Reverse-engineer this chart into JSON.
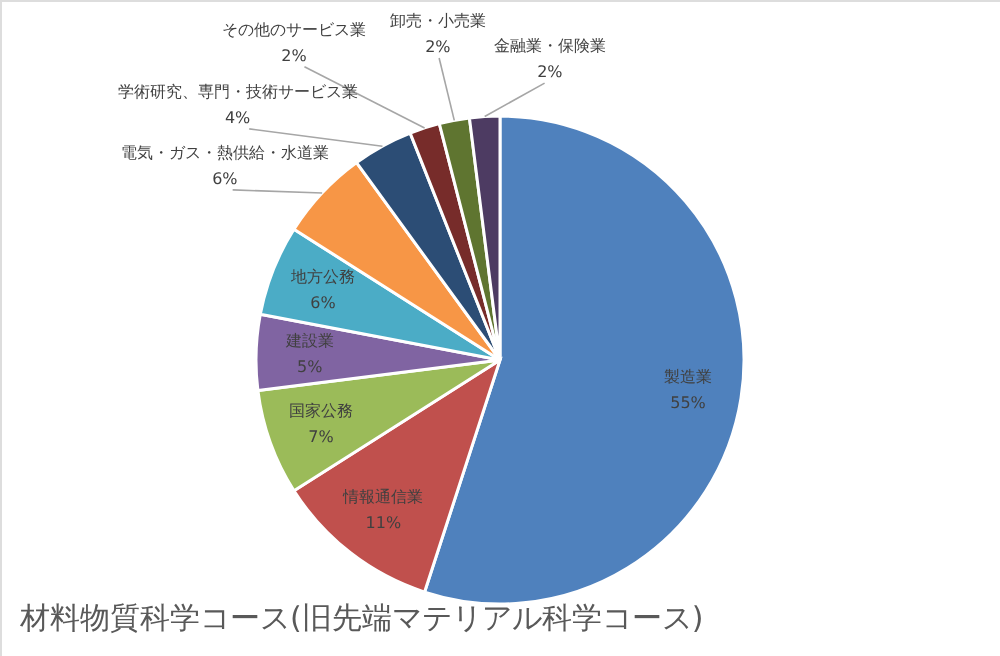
{
  "chart_data": {
    "type": "pie",
    "title": "材料物質科学コース(旧先端マテリアル科学コース)",
    "categories": [
      "製造業",
      "情報通信業",
      "国家公務",
      "建設業",
      "地方公務",
      "電気・ガス・熱供給・水道業",
      "学術研究、専門・技術サービス業",
      "その他のサービス業",
      "卸売・小売業",
      "金融業・保険業"
    ],
    "values": [
      55,
      11,
      7,
      5,
      6,
      6,
      4,
      2,
      2,
      2
    ],
    "value_labels": [
      "55%",
      "11%",
      "7%",
      "5%",
      "6%",
      "6%",
      "4%",
      "2%",
      "2%",
      "2%"
    ],
    "colors": [
      "#4f81bd",
      "#c0504d",
      "#9bbb59",
      "#8064a2",
      "#4bacc6",
      "#f79646",
      "#2c4d75",
      "#772c2a",
      "#5f7530",
      "#4d3b62"
    ]
  }
}
